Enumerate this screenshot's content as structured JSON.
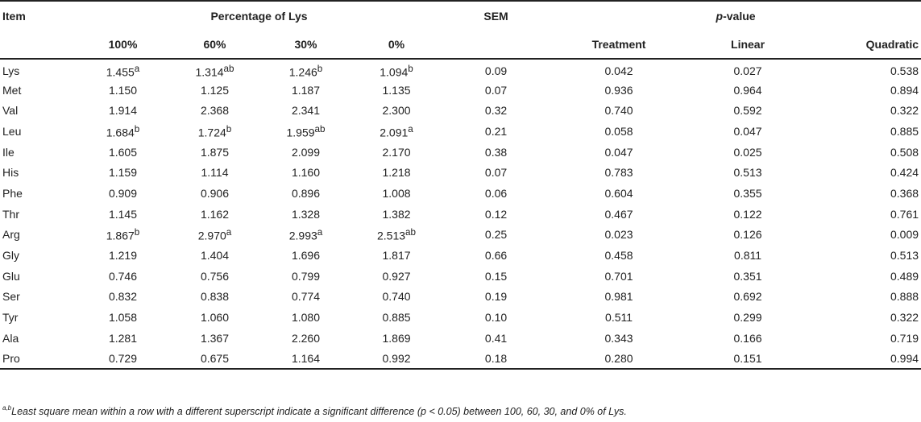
{
  "table": {
    "header": {
      "item": "Item",
      "group_lys": "Percentage of Lys",
      "sem": "SEM",
      "group_p_prefix": "p",
      "group_p_suffix": "-value",
      "sub_columns": [
        "100%",
        "60%",
        "30%",
        "0%",
        "Treatment",
        "Linear",
        "Quadratic"
      ]
    },
    "rows": [
      {
        "item": "Lys",
        "v100": "1.455",
        "s100": "a",
        "v60": "1.314",
        "s60": "ab",
        "v30": "1.246",
        "s30": "b",
        "v0": "1.094",
        "s0": "b",
        "sem": "0.09",
        "treatment": "0.042",
        "linear": "0.027",
        "quadratic": "0.538"
      },
      {
        "item": "Met",
        "v100": "1.150",
        "s100": "",
        "v60": "1.125",
        "s60": "",
        "v30": "1.187",
        "s30": "",
        "v0": "1.135",
        "s0": "",
        "sem": "0.07",
        "treatment": "0.936",
        "linear": "0.964",
        "quadratic": "0.894"
      },
      {
        "item": "Val",
        "v100": "1.914",
        "s100": "",
        "v60": "2.368",
        "s60": "",
        "v30": "2.341",
        "s30": "",
        "v0": "2.300",
        "s0": "",
        "sem": "0.32",
        "treatment": "0.740",
        "linear": "0.592",
        "quadratic": "0.322"
      },
      {
        "item": "Leu",
        "v100": "1.684",
        "s100": "b",
        "v60": "1.724",
        "s60": "b",
        "v30": "1.959",
        "s30": "ab",
        "v0": "2.091",
        "s0": "a",
        "sem": "0.21",
        "treatment": "0.058",
        "linear": "0.047",
        "quadratic": "0.885"
      },
      {
        "item": "Ile",
        "v100": "1.605",
        "s100": "",
        "v60": "1.875",
        "s60": "",
        "v30": "2.099",
        "s30": "",
        "v0": "2.170",
        "s0": "",
        "sem": "0.38",
        "treatment": "0.047",
        "linear": "0.025",
        "quadratic": "0.508"
      },
      {
        "item": "His",
        "v100": "1.159",
        "s100": "",
        "v60": "1.114",
        "s60": "",
        "v30": "1.160",
        "s30": "",
        "v0": "1.218",
        "s0": "",
        "sem": "0.07",
        "treatment": "0.783",
        "linear": "0.513",
        "quadratic": "0.424"
      },
      {
        "item": "Phe",
        "v100": "0.909",
        "s100": "",
        "v60": "0.906",
        "s60": "",
        "v30": "0.896",
        "s30": "",
        "v0": "1.008",
        "s0": "",
        "sem": "0.06",
        "treatment": "0.604",
        "linear": "0.355",
        "quadratic": "0.368"
      },
      {
        "item": "Thr",
        "v100": "1.145",
        "s100": "",
        "v60": "1.162",
        "s60": "",
        "v30": "1.328",
        "s30": "",
        "v0": "1.382",
        "s0": "",
        "sem": "0.12",
        "treatment": "0.467",
        "linear": "0.122",
        "quadratic": "0.761"
      },
      {
        "item": "Arg",
        "v100": "1.867",
        "s100": "b",
        "v60": "2.970",
        "s60": "a",
        "v30": "2.993",
        "s30": "a",
        "v0": "2.513",
        "s0": "ab",
        "sem": "0.25",
        "treatment": "0.023",
        "linear": "0.126",
        "quadratic": "0.009"
      },
      {
        "item": "Gly",
        "v100": "1.219",
        "s100": "",
        "v60": "1.404",
        "s60": "",
        "v30": "1.696",
        "s30": "",
        "v0": "1.817",
        "s0": "",
        "sem": "0.66",
        "treatment": "0.458",
        "linear": "0.811",
        "quadratic": "0.513"
      },
      {
        "item": "Glu",
        "v100": "0.746",
        "s100": "",
        "v60": "0.756",
        "s60": "",
        "v30": "0.799",
        "s30": "",
        "v0": "0.927",
        "s0": "",
        "sem": "0.15",
        "treatment": "0.701",
        "linear": "0.351",
        "quadratic": "0.489"
      },
      {
        "item": "Ser",
        "v100": "0.832",
        "s100": "",
        "v60": "0.838",
        "s60": "",
        "v30": "0.774",
        "s30": "",
        "v0": "0.740",
        "s0": "",
        "sem": "0.19",
        "treatment": "0.981",
        "linear": "0.692",
        "quadratic": "0.888"
      },
      {
        "item": "Tyr",
        "v100": "1.058",
        "s100": "",
        "v60": "1.060",
        "s60": "",
        "v30": "1.080",
        "s30": "",
        "v0": "0.885",
        "s0": "",
        "sem": "0.10",
        "treatment": "0.511",
        "linear": "0.299",
        "quadratic": "0.322"
      },
      {
        "item": "Ala",
        "v100": "1.281",
        "s100": "",
        "v60": "1.367",
        "s60": "",
        "v30": "2.260",
        "s30": "",
        "v0": "1.869",
        "s0": "",
        "sem": "0.41",
        "treatment": "0.343",
        "linear": "0.166",
        "quadratic": "0.719"
      },
      {
        "item": "Pro",
        "v100": "0.729",
        "s100": "",
        "v60": "0.675",
        "s60": "",
        "v30": "1.164",
        "s30": "",
        "v0": "0.992",
        "s0": "",
        "sem": "0.18",
        "treatment": "0.280",
        "linear": "0.151",
        "quadratic": "0.994"
      }
    ]
  },
  "footnote": {
    "superscript": "a,b",
    "text": "Least square mean within a row with a different superscript indicate a significant difference (p < 0.05) between 100, 60, 30, and 0% of Lys."
  }
}
